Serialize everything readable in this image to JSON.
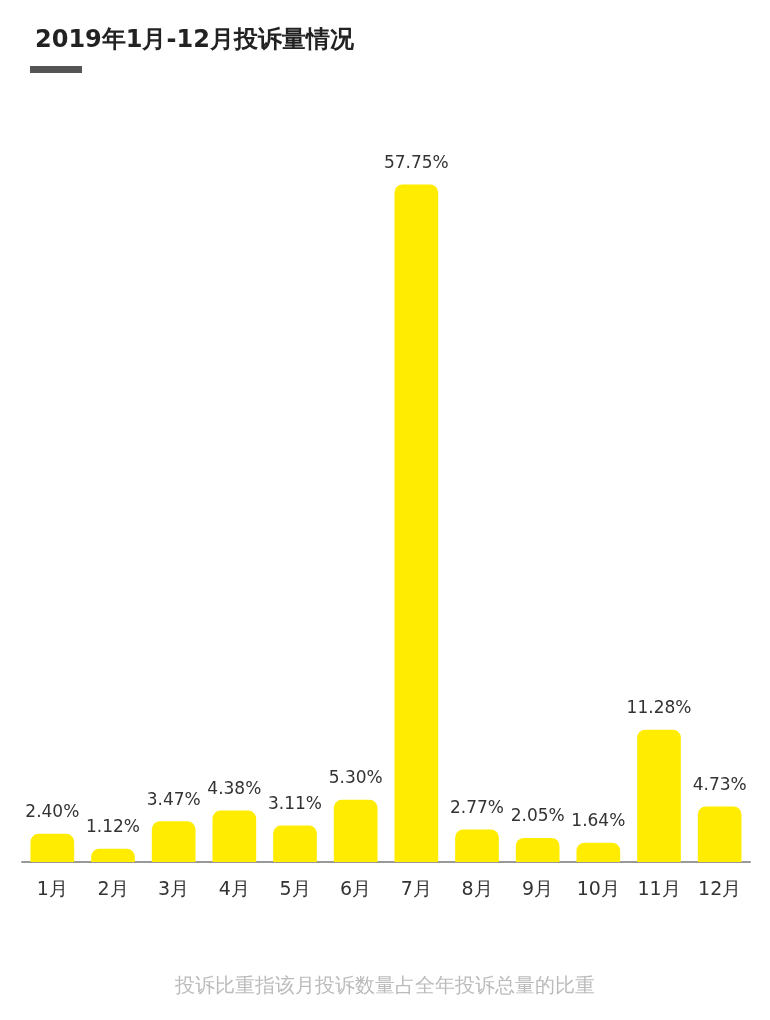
{
  "chart_data": {
    "type": "bar",
    "title": "2019年1月-12月投诉量情况",
    "categories": [
      "1月",
      "2月",
      "3月",
      "4月",
      "5月",
      "6月",
      "7月",
      "8月",
      "9月",
      "10月",
      "11月",
      "12月"
    ],
    "values": [
      2.4,
      1.12,
      3.47,
      4.38,
      3.11,
      5.3,
      57.75,
      2.77,
      2.05,
      1.64,
      11.28,
      4.73
    ],
    "value_labels": [
      "2.40%",
      "1.12%",
      "3.47%",
      "4.38%",
      "3.11%",
      "5.30%",
      "57.75%",
      "2.77%",
      "2.05%",
      "1.64%",
      "11.28%",
      "4.73%"
    ],
    "color": "#ffec00",
    "data_labels": true,
    "annotations": [
      "投诉比重指该月投诉数量占全年投诉总量的比重"
    ]
  }
}
